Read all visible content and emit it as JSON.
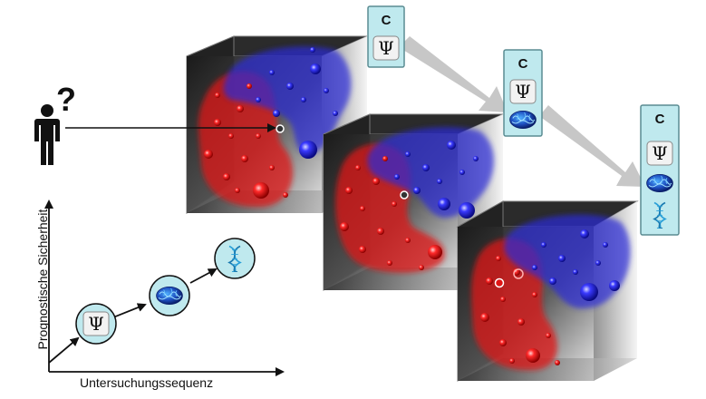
{
  "axes": {
    "y_label": "Prognostische Sicherheit",
    "x_label": "Untersuchungssequenz"
  },
  "person": {
    "question_mark": "?"
  },
  "panels": [
    {
      "letter": "C",
      "symbols": [
        "psi"
      ]
    },
    {
      "letter": "C",
      "symbols": [
        "psi",
        "brain"
      ]
    },
    {
      "letter": "C",
      "symbols": [
        "psi",
        "brain",
        "dna"
      ]
    }
  ],
  "graph_steps": [
    "psi",
    "brain",
    "dna"
  ],
  "psi_glyph": "Ψ",
  "colors": {
    "red_class": "#e01515",
    "blue_class": "#2a2ad8",
    "panel_fill": "#bfe9ee",
    "panel_border": "#5a8c92",
    "circle_fill": "#bfe9ee",
    "arrow_gray": "#c7c7c7"
  },
  "icons": [
    "person-icon",
    "psi-icon",
    "brain-icon",
    "dna-icon"
  ]
}
